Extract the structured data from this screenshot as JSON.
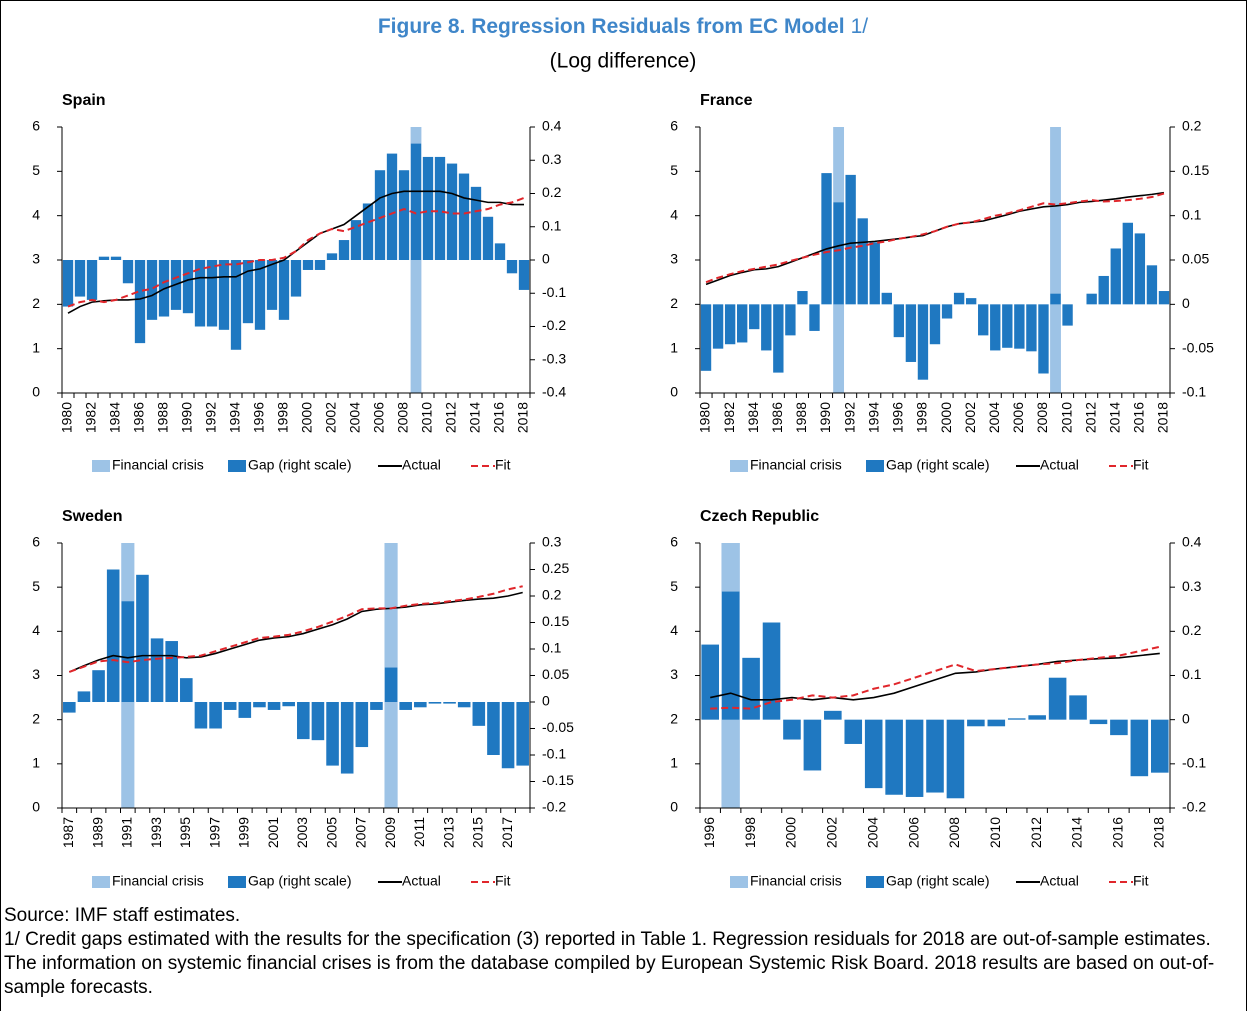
{
  "figure_title": "Figure 8. Regression Residuals from EC Model",
  "figure_title_note": "1/",
  "figure_subtitle": "(Log difference)",
  "source": "Source: IMF staff estimates.",
  "note": "1/ Credit gaps estimated with the results for the specification (3) reported in Table 1. Regression residuals for 2018 are out-of-sample estimates. The information on systemic financial crises is from the database compiled by European Systemic Risk Board. 2018 results are based on out-of-sample forecasts.",
  "chart_data": [
    {
      "type": "combo",
      "title": "Spain",
      "legend": "bottom",
      "categories": [
        1980,
        null,
        1982,
        null,
        1984,
        null,
        1986,
        null,
        1988,
        null,
        1990,
        null,
        1992,
        null,
        1994,
        null,
        1996,
        null,
        1998,
        null,
        2000,
        null,
        2002,
        null,
        2004,
        null,
        2006,
        null,
        2008,
        null,
        2010,
        null,
        2012,
        null,
        2014,
        null,
        2016,
        null,
        2018
      ],
      "ylim": [
        0,
        6
      ],
      "yticks": [
        0,
        1,
        2,
        3,
        4,
        5,
        6
      ],
      "y2lim": [
        -0.4,
        0.4
      ],
      "y2ticks": [
        -0.4,
        -0.3,
        -0.2,
        -0.1,
        0,
        0.1,
        0.2,
        0.3,
        0.4
      ],
      "series": [
        {
          "name": "Financial crisis",
          "type": "band",
          "color": "#9dc3e6",
          "values": [
            null,
            null,
            null,
            null,
            null,
            null,
            null,
            null,
            null,
            null,
            null,
            null,
            null,
            null,
            null,
            null,
            null,
            null,
            null,
            null,
            null,
            null,
            null,
            null,
            null,
            null,
            null,
            null,
            null,
            6,
            null,
            null,
            null,
            null,
            null,
            null,
            null,
            null,
            null
          ]
        },
        {
          "name": "Gap (right scale)",
          "type": "bar",
          "axis": "y2",
          "color": "#1f78c1",
          "values": [
            -0.14,
            -0.11,
            -0.12,
            0.01,
            0.01,
            -0.07,
            -0.25,
            -0.18,
            -0.17,
            -0.15,
            -0.16,
            -0.2,
            -0.2,
            -0.21,
            -0.27,
            -0.19,
            -0.21,
            -0.15,
            -0.18,
            -0.11,
            -0.03,
            -0.03,
            0.02,
            0.06,
            0.12,
            0.17,
            0.27,
            0.32,
            0.27,
            0.35,
            0.31,
            0.31,
            0.29,
            0.26,
            0.22,
            0.13,
            0.05,
            -0.04,
            -0.09
          ]
        },
        {
          "name": "Actual",
          "type": "line",
          "style": "solid",
          "color": "#000000",
          "values": [
            1.8,
            1.95,
            2.05,
            2.08,
            2.1,
            2.1,
            2.12,
            2.2,
            2.35,
            2.45,
            2.55,
            2.6,
            2.6,
            2.62,
            2.62,
            2.75,
            2.8,
            2.9,
            3.0,
            3.2,
            3.4,
            3.6,
            3.7,
            3.8,
            4.0,
            4.2,
            4.4,
            4.5,
            4.55,
            4.55,
            4.55,
            4.55,
            4.5,
            4.4,
            4.35,
            4.3,
            4.3,
            4.25,
            4.25
          ]
        },
        {
          "name": "Fit",
          "type": "line",
          "style": "dashed",
          "color": "#e0262b",
          "values": [
            1.95,
            2.05,
            2.1,
            2.05,
            2.1,
            2.2,
            2.3,
            2.35,
            2.5,
            2.6,
            2.7,
            2.8,
            2.85,
            2.9,
            2.9,
            2.95,
            3.0,
            3.0,
            3.05,
            3.2,
            3.45,
            3.6,
            3.7,
            3.65,
            3.75,
            3.85,
            3.95,
            4.05,
            4.15,
            4.05,
            4.1,
            4.1,
            4.05,
            4.05,
            4.1,
            4.15,
            4.25,
            4.3,
            4.4
          ]
        }
      ]
    },
    {
      "type": "combo",
      "title": "France",
      "legend": "bottom",
      "categories": [
        1980,
        null,
        1982,
        null,
        1984,
        null,
        1986,
        null,
        1988,
        null,
        1990,
        null,
        1992,
        null,
        1994,
        null,
        1996,
        null,
        1998,
        null,
        2000,
        null,
        2002,
        null,
        2004,
        null,
        2006,
        null,
        2008,
        null,
        2010,
        null,
        2012,
        null,
        2014,
        null,
        2016,
        null,
        2018
      ],
      "ylim": [
        0,
        6
      ],
      "yticks": [
        0,
        1,
        2,
        3,
        4,
        5,
        6
      ],
      "y2lim": [
        -0.1,
        0.2
      ],
      "y2ticks": [
        -0.1,
        -0.05,
        0,
        0.05,
        0.1,
        0.15,
        0.2
      ],
      "series": [
        {
          "name": "Financial crisis",
          "type": "band",
          "color": "#9dc3e6",
          "values": [
            null,
            null,
            null,
            null,
            null,
            null,
            null,
            null,
            null,
            null,
            null,
            6,
            null,
            null,
            null,
            null,
            null,
            null,
            null,
            null,
            null,
            null,
            null,
            null,
            null,
            null,
            null,
            null,
            null,
            6,
            null,
            null,
            null,
            null,
            null,
            null,
            null,
            null,
            null
          ]
        },
        {
          "name": "Gap (right scale)",
          "type": "bar",
          "axis": "y2",
          "color": "#1f78c1",
          "values": [
            -0.075,
            -0.05,
            -0.045,
            -0.043,
            -0.028,
            -0.052,
            -0.077,
            -0.035,
            0.015,
            -0.03,
            0.148,
            0.115,
            0.146,
            0.097,
            0.07,
            0.013,
            -0.037,
            -0.065,
            -0.085,
            -0.045,
            -0.016,
            0.013,
            0.007,
            -0.035,
            -0.052,
            -0.049,
            -0.05,
            -0.053,
            -0.078,
            0.012,
            -0.024,
            0,
            0.012,
            0.032,
            0.063,
            0.092,
            0.08,
            0.044,
            0.015
          ]
        },
        {
          "name": "Actual",
          "type": "line",
          "style": "solid",
          "color": "#000000",
          "values": [
            2.45,
            2.55,
            2.65,
            2.72,
            2.78,
            2.8,
            2.85,
            2.95,
            3.05,
            3.15,
            3.25,
            3.32,
            3.38,
            3.4,
            3.42,
            3.45,
            3.48,
            3.52,
            3.55,
            3.65,
            3.75,
            3.82,
            3.85,
            3.88,
            3.95,
            4.02,
            4.1,
            4.15,
            4.2,
            4.22,
            4.25,
            4.3,
            4.32,
            4.35,
            4.38,
            4.42,
            4.45,
            4.48,
            4.52
          ]
        },
        {
          "name": "Fit",
          "type": "line",
          "style": "dashed",
          "color": "#e0262b",
          "values": [
            2.5,
            2.6,
            2.68,
            2.75,
            2.8,
            2.85,
            2.9,
            2.98,
            3.05,
            3.12,
            3.18,
            3.22,
            3.28,
            3.32,
            3.38,
            3.42,
            3.48,
            3.52,
            3.58,
            3.65,
            3.75,
            3.82,
            3.85,
            3.92,
            4.0,
            4.05,
            4.12,
            4.2,
            4.28,
            4.25,
            4.28,
            4.32,
            4.35,
            4.32,
            4.33,
            4.35,
            4.38,
            4.42,
            4.5
          ]
        }
      ]
    },
    {
      "type": "combo",
      "title": "Sweden",
      "legend": "bottom",
      "categories": [
        1987,
        null,
        1989,
        null,
        1991,
        null,
        1993,
        null,
        1995,
        null,
        1997,
        null,
        1999,
        null,
        2001,
        null,
        2003,
        null,
        2005,
        null,
        2007,
        null,
        2009,
        null,
        2011,
        null,
        2013,
        null,
        2015,
        null,
        2017,
        null
      ],
      "ylim": [
        0,
        6
      ],
      "yticks": [
        0,
        1,
        2,
        3,
        4,
        5,
        6
      ],
      "y2lim": [
        -0.2,
        0.3
      ],
      "y2ticks": [
        -0.2,
        -0.15,
        -0.1,
        -0.05,
        0,
        0.05,
        0.1,
        0.15,
        0.2,
        0.25,
        0.3
      ],
      "series": [
        {
          "name": "Financial crisis",
          "type": "band",
          "color": "#9dc3e6",
          "values": [
            null,
            null,
            null,
            null,
            6,
            null,
            null,
            null,
            null,
            null,
            null,
            null,
            null,
            null,
            null,
            null,
            null,
            null,
            null,
            null,
            null,
            null,
            6,
            null,
            null,
            null,
            null,
            null,
            null,
            null,
            null,
            null
          ]
        },
        {
          "name": "Gap (right scale)",
          "type": "bar",
          "axis": "y2",
          "color": "#1f78c1",
          "values": [
            -0.02,
            0.02,
            0.06,
            0.25,
            0.19,
            0.24,
            0.12,
            0.115,
            0.045,
            -0.05,
            -0.05,
            -0.015,
            -0.03,
            -0.01,
            -0.015,
            -0.008,
            -0.07,
            -0.072,
            -0.12,
            -0.135,
            -0.085,
            -0.015,
            0.065,
            -0.015,
            -0.01,
            -0.003,
            -0.003,
            -0.01,
            -0.045,
            -0.1,
            -0.125,
            -0.12
          ]
        },
        {
          "name": "Actual",
          "type": "line",
          "style": "solid",
          "color": "#000000",
          "values": [
            3.08,
            3.22,
            3.35,
            3.45,
            3.4,
            3.45,
            3.45,
            3.45,
            3.4,
            3.42,
            3.5,
            3.6,
            3.7,
            3.8,
            3.85,
            3.88,
            3.95,
            4.05,
            4.15,
            4.28,
            4.45,
            4.5,
            4.52,
            4.55,
            4.6,
            4.62,
            4.66,
            4.7,
            4.73,
            4.75,
            4.8,
            4.88
          ]
        },
        {
          "name": "Fit",
          "type": "line",
          "style": "dashed",
          "color": "#e0262b",
          "values": [
            3.08,
            3.2,
            3.32,
            3.35,
            3.3,
            3.35,
            3.38,
            3.4,
            3.42,
            3.45,
            3.55,
            3.65,
            3.75,
            3.85,
            3.88,
            3.92,
            4.0,
            4.1,
            4.22,
            4.35,
            4.5,
            4.52,
            4.52,
            4.58,
            4.62,
            4.64,
            4.68,
            4.72,
            4.78,
            4.85,
            4.95,
            5.02
          ]
        }
      ]
    },
    {
      "type": "combo",
      "title": "Czech Republic",
      "legend": "bottom",
      "categories": [
        1996,
        null,
        1998,
        null,
        2000,
        null,
        2002,
        null,
        2004,
        null,
        2006,
        null,
        2008,
        null,
        2010,
        null,
        2012,
        null,
        2014,
        null,
        2016,
        null,
        2018
      ],
      "ylim": [
        0,
        6
      ],
      "yticks": [
        0,
        1,
        2,
        3,
        4,
        5,
        6
      ],
      "y2lim": [
        -0.2,
        0.4
      ],
      "y2ticks": [
        -0.2,
        -0.1,
        0,
        0.1,
        0.2,
        0.3,
        0.4
      ],
      "series": [
        {
          "name": "Financial crisis",
          "type": "band",
          "color": "#9dc3e6",
          "values": [
            null,
            6,
            null,
            null,
            null,
            null,
            null,
            null,
            null,
            null,
            null,
            null,
            null,
            null,
            null,
            null,
            null,
            null,
            null,
            null,
            null,
            null,
            null
          ]
        },
        {
          "name": "Gap (right scale)",
          "type": "bar",
          "axis": "y2",
          "color": "#1f78c1",
          "values": [
            0.17,
            0.29,
            0.14,
            0.22,
            -0.045,
            -0.115,
            0.02,
            -0.055,
            -0.155,
            -0.17,
            -0.175,
            -0.165,
            -0.178,
            -0.015,
            -0.015,
            0.003,
            0.01,
            0.095,
            0.055,
            -0.01,
            -0.035,
            -0.128,
            -0.12
          ]
        },
        {
          "name": "Actual",
          "type": "line",
          "style": "solid",
          "color": "#000000",
          "values": [
            2.5,
            2.6,
            2.45,
            2.45,
            2.5,
            2.45,
            2.5,
            2.45,
            2.5,
            2.6,
            2.75,
            2.9,
            3.05,
            3.08,
            3.15,
            3.2,
            3.25,
            3.32,
            3.35,
            3.38,
            3.4,
            3.45,
            3.5
          ]
        },
        {
          "name": "Fit",
          "type": "line",
          "style": "dashed",
          "color": "#e0262b",
          "values": [
            2.25,
            2.27,
            2.25,
            2.4,
            2.45,
            2.55,
            2.5,
            2.55,
            2.7,
            2.8,
            2.95,
            3.1,
            3.25,
            3.1,
            3.15,
            3.2,
            3.25,
            3.28,
            3.35,
            3.4,
            3.45,
            3.55,
            3.65
          ]
        }
      ]
    }
  ]
}
